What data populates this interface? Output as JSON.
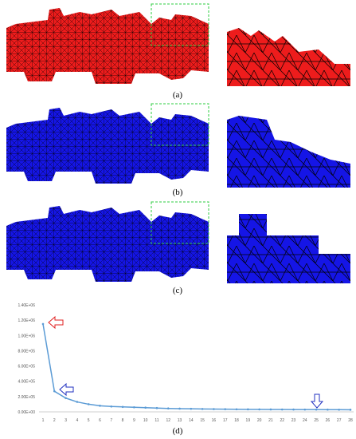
{
  "captions": [
    "(a)",
    "(b)",
    "(c)",
    "(d)"
  ],
  "chart_data": {
    "type": "line",
    "categories": [
      "1",
      "2",
      "3",
      "4",
      "5",
      "6",
      "7",
      "8",
      "9",
      "10",
      "11",
      "12",
      "13",
      "14",
      "15",
      "16",
      "17",
      "18",
      "19",
      "20",
      "21",
      "22",
      "23",
      "24",
      "25",
      "26",
      "27",
      "28"
    ],
    "series": [
      {
        "color": "#5b9bd5",
        "values": [
          1150000,
          270000,
          180000,
          130000,
          100000,
          80000,
          70000,
          65000,
          60000,
          55000,
          50000,
          45000,
          42000,
          40000,
          38000,
          36000,
          35000,
          34000,
          33000,
          32000,
          31500,
          31000,
          30500,
          30000,
          29500,
          29000,
          28500,
          28000
        ]
      }
    ],
    "ylim": [
      0,
      1400000
    ],
    "yticks": [
      {
        "value": 0,
        "label": "0.00E+00"
      },
      {
        "value": 200000,
        "label": "2.00E+05"
      },
      {
        "value": 400000,
        "label": "4.00E+05"
      },
      {
        "value": 600000,
        "label": "6.00E+05"
      },
      {
        "value": 800000,
        "label": "8.00E+05"
      },
      {
        "value": 1000000,
        "label": "1.00E+06"
      },
      {
        "value": 1200000,
        "label": "1.20E+06"
      },
      {
        "value": 1400000,
        "label": "1.40E+06"
      }
    ],
    "grid": false
  }
}
